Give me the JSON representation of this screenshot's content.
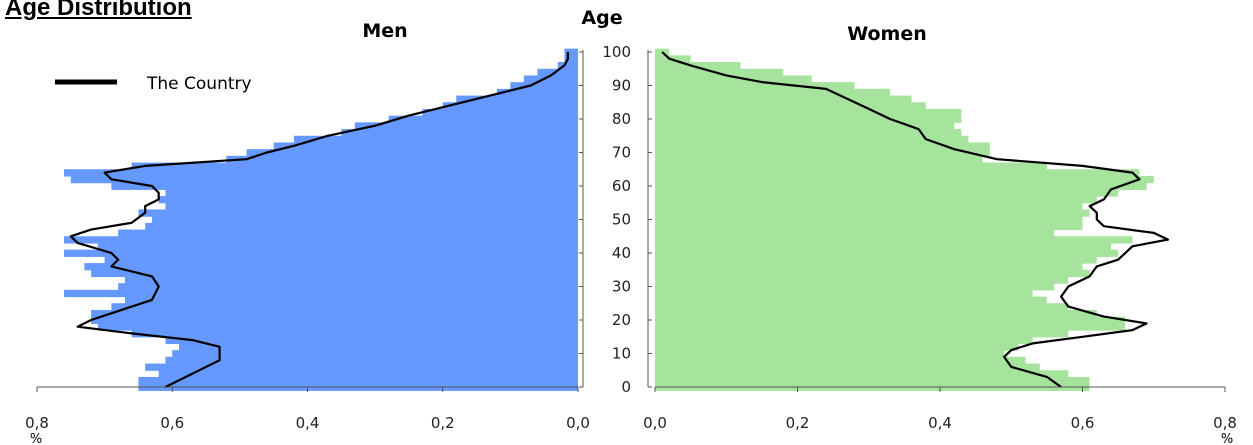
{
  "title": "Age Distribution",
  "colors": {
    "men_bars": "#6699ff",
    "women_bars": "#a6e39c",
    "line": "#000000",
    "axis": "#555555"
  },
  "chart_data": {
    "type": "bar",
    "orientation": "horizontal",
    "layout": "population-pyramid",
    "center_label": "Age",
    "unit_label": "%",
    "legend": {
      "label": "The Country",
      "placement": "top-left"
    },
    "age_axis": {
      "min": 0,
      "max": 100,
      "ticks": [
        0,
        10,
        20,
        30,
        40,
        50,
        60,
        70,
        80,
        90,
        100
      ]
    },
    "value_axis": {
      "min": 0,
      "max": 0.8,
      "ticks": [
        0.0,
        0.2,
        0.4,
        0.6,
        0.8
      ],
      "tick_labels": [
        "0,0",
        "0,2",
        "0,4",
        "0,6",
        "0,8"
      ]
    },
    "panels": [
      {
        "name": "Men",
        "direction": "left",
        "bars": [
          [
            0,
            0.65
          ],
          [
            2,
            0.65
          ],
          [
            4,
            0.62
          ],
          [
            6,
            0.64
          ],
          [
            8,
            0.61
          ],
          [
            10,
            0.6
          ],
          [
            12,
            0.59
          ],
          [
            14,
            0.61
          ],
          [
            16,
            0.66
          ],
          [
            18,
            0.71
          ],
          [
            20,
            0.72
          ],
          [
            22,
            0.72
          ],
          [
            24,
            0.69
          ],
          [
            26,
            0.67
          ],
          [
            28,
            0.76
          ],
          [
            30,
            0.68
          ],
          [
            32,
            0.67
          ],
          [
            34,
            0.72
          ],
          [
            36,
            0.73
          ],
          [
            38,
            0.7
          ],
          [
            40,
            0.76
          ],
          [
            42,
            0.71
          ],
          [
            44,
            0.76
          ],
          [
            46,
            0.68
          ],
          [
            48,
            0.64
          ],
          [
            50,
            0.63
          ],
          [
            52,
            0.65
          ],
          [
            54,
            0.61
          ],
          [
            56,
            0.62
          ],
          [
            58,
            0.61
          ],
          [
            60,
            0.69
          ],
          [
            62,
            0.75
          ],
          [
            64,
            0.76
          ],
          [
            66,
            0.66
          ],
          [
            68,
            0.52
          ],
          [
            70,
            0.49
          ],
          [
            72,
            0.45
          ],
          [
            74,
            0.42
          ],
          [
            76,
            0.35
          ],
          [
            78,
            0.33
          ],
          [
            80,
            0.28
          ],
          [
            82,
            0.23
          ],
          [
            84,
            0.2
          ],
          [
            86,
            0.18
          ],
          [
            88,
            0.12
          ],
          [
            90,
            0.1
          ],
          [
            92,
            0.08
          ],
          [
            94,
            0.06
          ],
          [
            96,
            0.03
          ],
          [
            98,
            0.02
          ],
          [
            100,
            0.02
          ]
        ],
        "line": [
          [
            0,
            0.61
          ],
          [
            4,
            0.57
          ],
          [
            8,
            0.53
          ],
          [
            10,
            0.53
          ],
          [
            12,
            0.53
          ],
          [
            14,
            0.57
          ],
          [
            16,
            0.66
          ],
          [
            18,
            0.74
          ],
          [
            20,
            0.72
          ],
          [
            22,
            0.69
          ],
          [
            26,
            0.63
          ],
          [
            30,
            0.62
          ],
          [
            33,
            0.63
          ],
          [
            36,
            0.69
          ],
          [
            38,
            0.68
          ],
          [
            40,
            0.69
          ],
          [
            43,
            0.74
          ],
          [
            45,
            0.75
          ],
          [
            47,
            0.72
          ],
          [
            49,
            0.66
          ],
          [
            52,
            0.64
          ],
          [
            54,
            0.64
          ],
          [
            56,
            0.62
          ],
          [
            58,
            0.62
          ],
          [
            60,
            0.63
          ],
          [
            62,
            0.69
          ],
          [
            64,
            0.7
          ],
          [
            66,
            0.64
          ],
          [
            68,
            0.49
          ],
          [
            70,
            0.46
          ],
          [
            72,
            0.42
          ],
          [
            75,
            0.37
          ],
          [
            78,
            0.3
          ],
          [
            81,
            0.25
          ],
          [
            84,
            0.19
          ],
          [
            87,
            0.13
          ],
          [
            90,
            0.07
          ],
          [
            93,
            0.04
          ],
          [
            96,
            0.02
          ],
          [
            98,
            0.015
          ],
          [
            100,
            0.015
          ]
        ]
      },
      {
        "name": "Women",
        "direction": "right",
        "bars": [
          [
            0,
            0.61
          ],
          [
            2,
            0.61
          ],
          [
            4,
            0.58
          ],
          [
            6,
            0.54
          ],
          [
            8,
            0.52
          ],
          [
            10,
            0.49
          ],
          [
            12,
            0.51
          ],
          [
            14,
            0.53
          ],
          [
            16,
            0.58
          ],
          [
            18,
            0.66
          ],
          [
            20,
            0.66
          ],
          [
            22,
            0.62
          ],
          [
            24,
            0.58
          ],
          [
            26,
            0.55
          ],
          [
            28,
            0.53
          ],
          [
            30,
            0.56
          ],
          [
            32,
            0.58
          ],
          [
            34,
            0.61
          ],
          [
            36,
            0.6
          ],
          [
            38,
            0.62
          ],
          [
            40,
            0.65
          ],
          [
            42,
            0.64
          ],
          [
            44,
            0.67
          ],
          [
            46,
            0.56
          ],
          [
            48,
            0.6
          ],
          [
            50,
            0.6
          ],
          [
            52,
            0.61
          ],
          [
            54,
            0.6
          ],
          [
            56,
            0.62
          ],
          [
            58,
            0.65
          ],
          [
            60,
            0.69
          ],
          [
            62,
            0.7
          ],
          [
            64,
            0.68
          ],
          [
            66,
            0.55
          ],
          [
            68,
            0.46
          ],
          [
            70,
            0.47
          ],
          [
            72,
            0.47
          ],
          [
            74,
            0.44
          ],
          [
            76,
            0.43
          ],
          [
            78,
            0.42
          ],
          [
            80,
            0.43
          ],
          [
            82,
            0.43
          ],
          [
            84,
            0.38
          ],
          [
            86,
            0.36
          ],
          [
            88,
            0.33
          ],
          [
            90,
            0.28
          ],
          [
            92,
            0.22
          ],
          [
            94,
            0.18
          ],
          [
            96,
            0.12
          ],
          [
            98,
            0.05
          ],
          [
            100,
            0.02
          ]
        ],
        "line": [
          [
            0,
            0.57
          ],
          [
            3,
            0.55
          ],
          [
            6,
            0.5
          ],
          [
            9,
            0.49
          ],
          [
            11,
            0.5
          ],
          [
            13,
            0.53
          ],
          [
            15,
            0.6
          ],
          [
            17,
            0.67
          ],
          [
            19,
            0.69
          ],
          [
            21,
            0.63
          ],
          [
            24,
            0.58
          ],
          [
            27,
            0.57
          ],
          [
            30,
            0.58
          ],
          [
            33,
            0.61
          ],
          [
            36,
            0.62
          ],
          [
            38,
            0.65
          ],
          [
            40,
            0.66
          ],
          [
            42,
            0.67
          ],
          [
            44,
            0.72
          ],
          [
            46,
            0.7
          ],
          [
            48,
            0.63
          ],
          [
            50,
            0.62
          ],
          [
            52,
            0.62
          ],
          [
            54,
            0.61
          ],
          [
            56,
            0.63
          ],
          [
            59,
            0.64
          ],
          [
            62,
            0.68
          ],
          [
            64,
            0.67
          ],
          [
            66,
            0.6
          ],
          [
            68,
            0.48
          ],
          [
            71,
            0.42
          ],
          [
            74,
            0.38
          ],
          [
            77,
            0.37
          ],
          [
            80,
            0.33
          ],
          [
            83,
            0.3
          ],
          [
            86,
            0.27
          ],
          [
            89,
            0.24
          ],
          [
            91,
            0.15
          ],
          [
            93,
            0.1
          ],
          [
            96,
            0.05
          ],
          [
            98,
            0.02
          ],
          [
            100,
            0.01
          ]
        ]
      }
    ]
  }
}
